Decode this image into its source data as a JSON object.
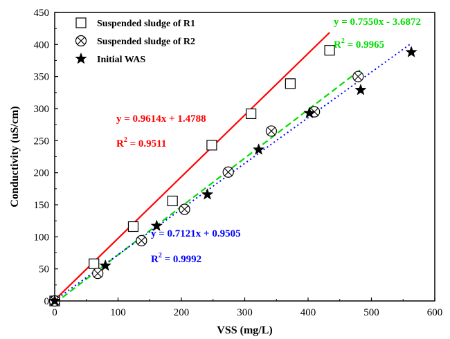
{
  "chart_data": {
    "type": "scatter",
    "title": "",
    "xlabel": "VSS (mg/L)",
    "ylabel": "Conductivity (uS/cm)",
    "xlim": [
      0,
      600
    ],
    "ylim": [
      0,
      450
    ],
    "xticks": [
      0,
      100,
      200,
      300,
      400,
      500,
      600
    ],
    "yticks": [
      0,
      50,
      100,
      150,
      200,
      250,
      300,
      350,
      400,
      450
    ],
    "grid": false,
    "legend_position": "top-left",
    "series": [
      {
        "name": "Suspended sludge of R1",
        "marker": "square",
        "color": "#000000",
        "points": [
          [
            0,
            0
          ],
          [
            62,
            58
          ],
          [
            124,
            116
          ],
          [
            186,
            156
          ],
          [
            248,
            243
          ],
          [
            310,
            292
          ],
          [
            372,
            339
          ],
          [
            434,
            391
          ]
        ]
      },
      {
        "name": "Suspended sludge of R2",
        "marker": "circle-x",
        "color": "#000000",
        "points": [
          [
            0,
            0
          ],
          [
            68,
            43
          ],
          [
            137,
            94
          ],
          [
            205,
            143
          ],
          [
            274,
            201
          ],
          [
            342,
            265
          ],
          [
            410,
            295
          ],
          [
            479,
            350
          ]
        ]
      },
      {
        "name": "Initial WAS",
        "marker": "star",
        "color": "#000000",
        "points": [
          [
            0,
            0
          ],
          [
            80,
            55
          ],
          [
            161,
            117
          ],
          [
            241,
            166
          ],
          [
            322,
            236
          ],
          [
            402,
            293
          ],
          [
            483,
            329
          ],
          [
            563,
            388
          ]
        ]
      }
    ],
    "fits": [
      {
        "series": "Suspended sludge of R1",
        "equation": "y = 0.9614x + 1.4788",
        "r2_value": "0.9511",
        "slope": 0.9614,
        "intercept": 1.4788,
        "x_range": [
          0,
          434
        ],
        "color": "#ff0000",
        "style": "solid"
      },
      {
        "series": "Suspended sludge of R2",
        "equation": "y = 0.7550x - 3.6872",
        "r2_value": "0.9965",
        "slope": 0.755,
        "intercept": -3.6872,
        "x_range": [
          0,
          483
        ],
        "color": "#00dd00",
        "style": "dashed"
      },
      {
        "series": "Initial WAS",
        "equation": "y = 0.7121x + 0.9505",
        "r2_value": "0.9992",
        "slope": 0.7121,
        "intercept": 0.9505,
        "x_range": [
          0,
          563
        ],
        "color": "#0000ff",
        "style": "dotted"
      }
    ]
  },
  "labels": {
    "r2_prefix": "R",
    "r2_exp": "2",
    "r2_equals": " = "
  }
}
